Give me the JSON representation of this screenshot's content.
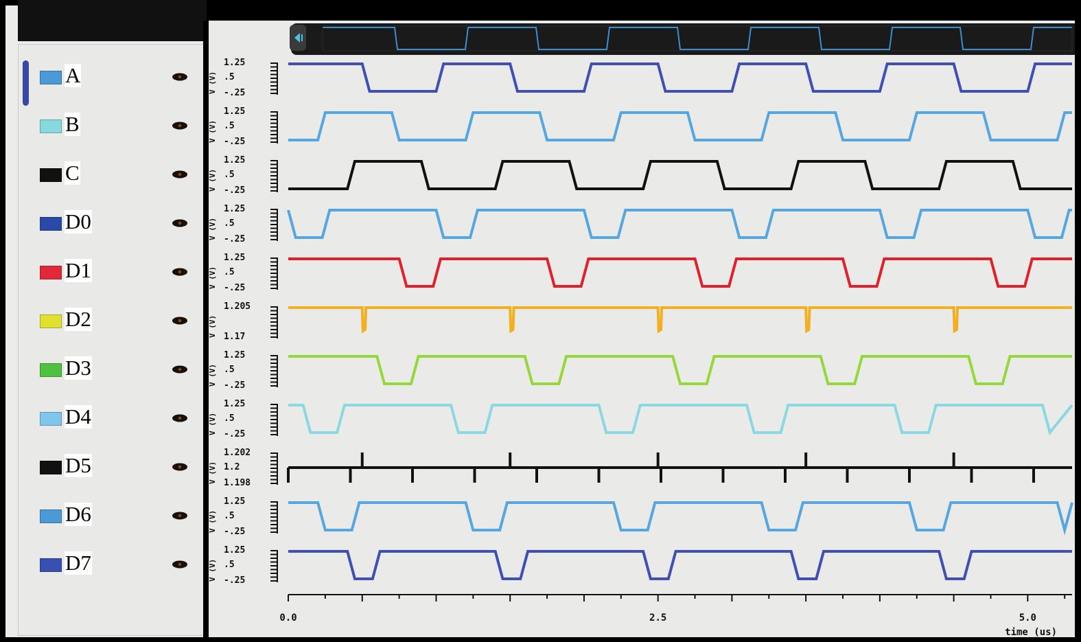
{
  "signals": [
    {
      "name": "A",
      "color": "#3f4fb4",
      "swatch": "#4a9ad8",
      "kind": "clock",
      "period": 1.0,
      "high_start": 0.0,
      "y_ticks": [
        "1.25",
        ".5",
        "-.25"
      ]
    },
    {
      "name": "B",
      "color": "#56a6e0",
      "swatch": "#88d8e0",
      "kind": "clock",
      "period": 1.0,
      "high_start": 0.2,
      "y_ticks": [
        "1.25",
        ".5",
        "-.25"
      ]
    },
    {
      "name": "C",
      "color": "#111111",
      "swatch": "#111111",
      "kind": "clock",
      "period": 1.0,
      "high_start": 0.4,
      "y_ticks": [
        "1.25",
        ".5",
        "-.25"
      ]
    },
    {
      "name": "D0",
      "color": "#56a6e0",
      "swatch": "#2b4aa8",
      "kind": "dip",
      "y_ticks": [
        "1.25",
        ".5",
        "-.25"
      ]
    },
    {
      "name": "D1",
      "color": "#e0202a",
      "swatch": "#e02838",
      "kind": "dip",
      "y_ticks": [
        "1.25",
        ".5",
        "-.25"
      ]
    },
    {
      "name": "D2",
      "color": "#f2b020",
      "swatch": "#dfe030",
      "kind": "glitch",
      "y_ticks": [
        "1.205",
        "",
        "1.17"
      ]
    },
    {
      "name": "D3",
      "color": "#94d83a",
      "swatch": "#50c040",
      "kind": "dip",
      "y_ticks": [
        "1.25",
        ".5",
        "-.25"
      ]
    },
    {
      "name": "D4",
      "color": "#8ad8e2",
      "swatch": "#7ec6ec",
      "kind": "dip",
      "y_ticks": [
        "1.25",
        ".5",
        "-.25"
      ]
    },
    {
      "name": "D5",
      "color": "#111111",
      "swatch": "#111111",
      "kind": "spikes",
      "y_ticks": [
        "1.202",
        "1.2",
        "1.198"
      ]
    },
    {
      "name": "D6",
      "color": "#56a6e0",
      "swatch": "#4a9ad8",
      "kind": "dip",
      "y_ticks": [
        "1.25",
        ".5",
        "-.25"
      ]
    },
    {
      "name": "D7",
      "color": "#3f4fb4",
      "swatch": "#3850b0",
      "kind": "dip",
      "y_ticks": [
        "1.25",
        ".5",
        "-.25"
      ]
    }
  ],
  "y_unit_label": "V (V)",
  "x_axis": {
    "ticks": [
      "0.0",
      "2.5",
      "5.0"
    ],
    "tick_values": [
      0.0,
      2.5,
      5.0
    ],
    "range": [
      0.0,
      5.3
    ],
    "label": "time (us)"
  },
  "overview_color": "#3a8fd0",
  "sidebar_title": "",
  "icons": {
    "visibility": "eye-icon",
    "collapse": "arrow-left-icon"
  }
}
